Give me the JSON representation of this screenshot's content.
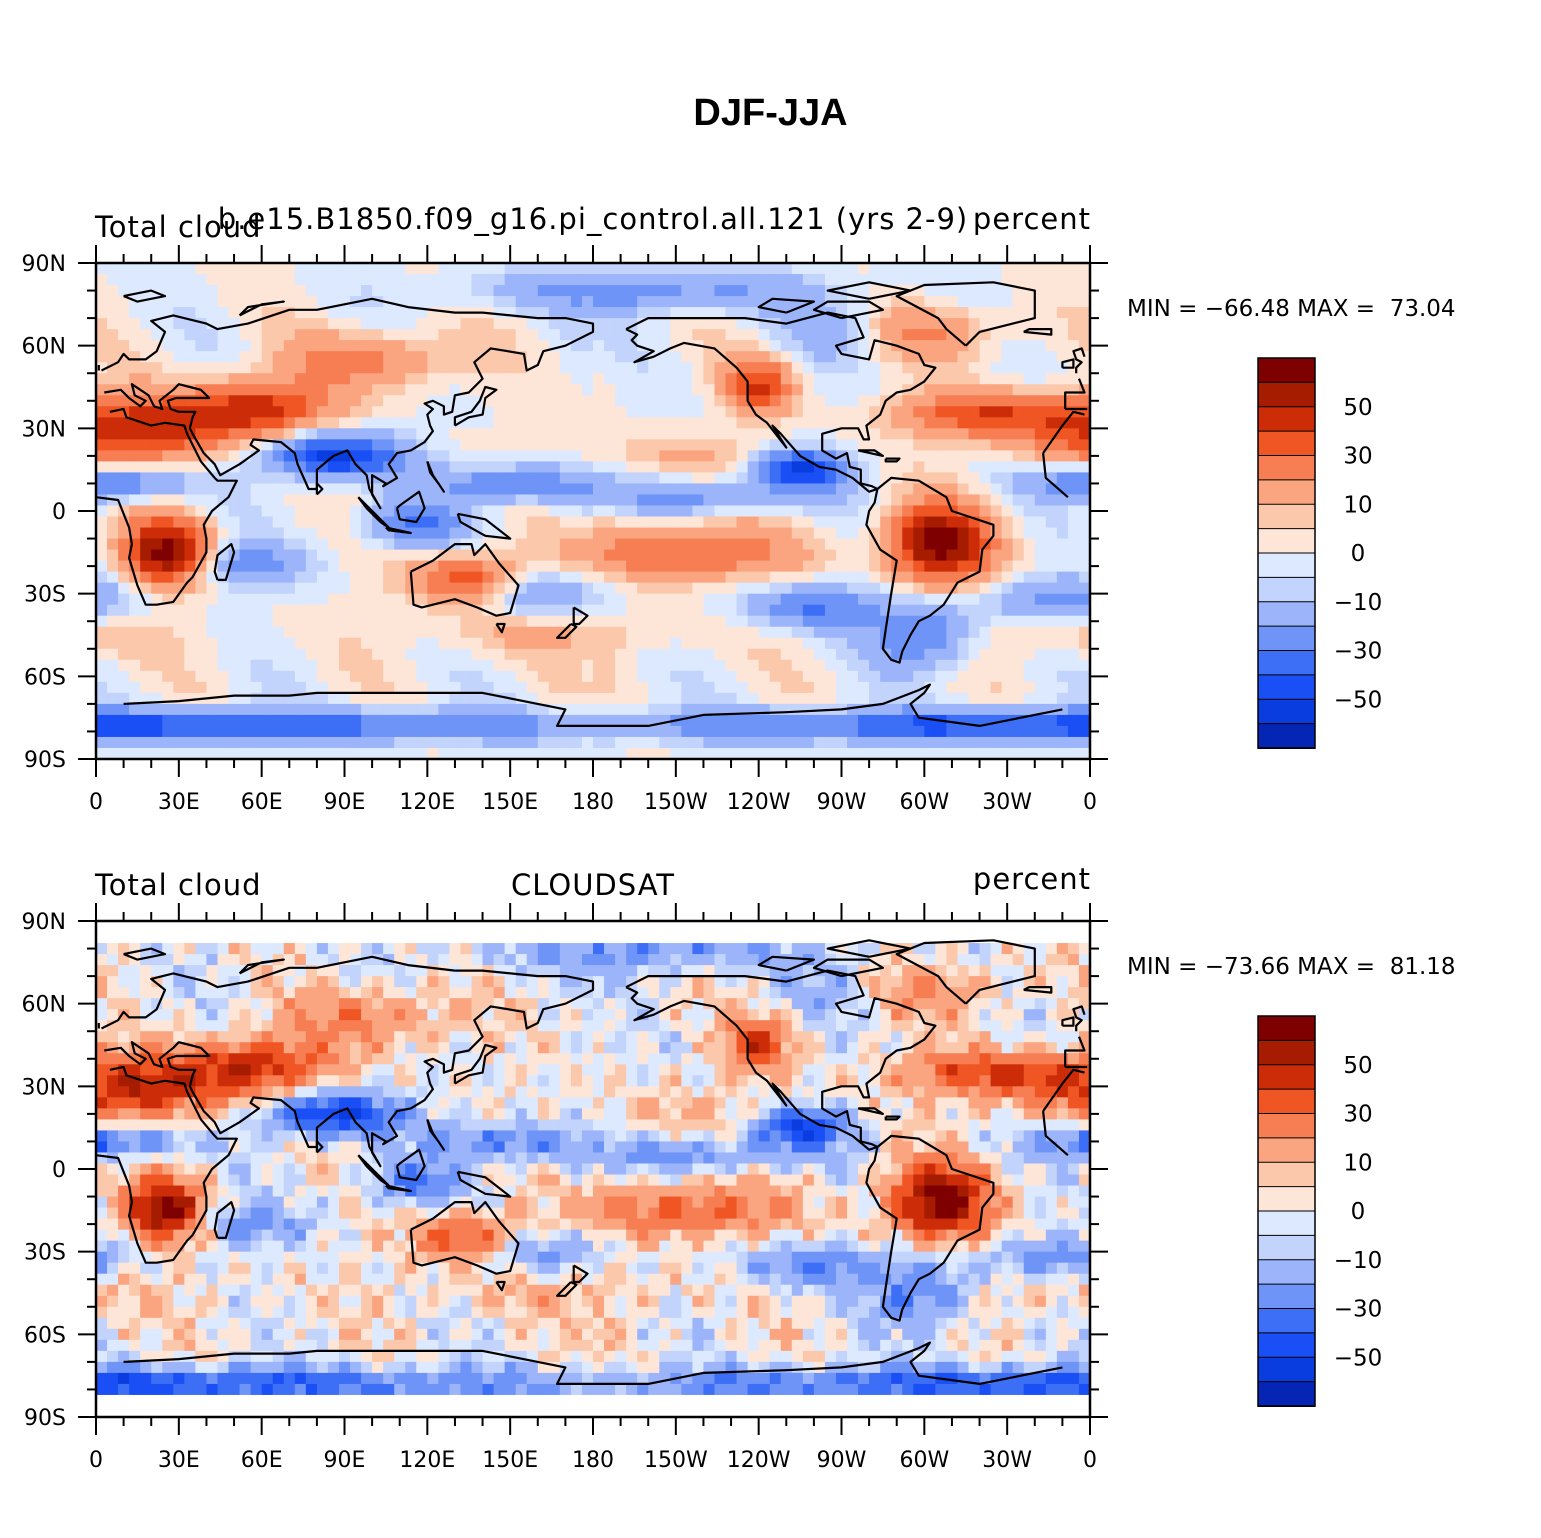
{
  "title": "DJF-JJA",
  "colors": {
    "levels": [
      "#08088a",
      "#0526b4",
      "#0a3de0",
      "#1a4ff5",
      "#3d6ef6",
      "#6e94f7",
      "#9cb5fa",
      "#c2d3fc",
      "#dde9fe",
      "#fde6d8",
      "#fcc8ac",
      "#faa580",
      "#f77e53",
      "#f05524",
      "#cc2d08",
      "#a51c00",
      "#7e0000"
    ],
    "coast": "#000000"
  },
  "chart_data": [
    {
      "type": "heatmap",
      "subtitle_left": "Total cloud",
      "subtitle_center": "b.e15.B1850.f09_g16.pi_control.all.121 (yrs 2-9)",
      "subtitle_right": "percent",
      "min_label": "MIN = −66.48 MAX =  73.04",
      "min": -66.48,
      "max": 73.04,
      "x_ticks": [
        "0",
        "30E",
        "60E",
        "90E",
        "120E",
        "150E",
        "180",
        "150W",
        "120W",
        "90W",
        "60W",
        "30W",
        "0"
      ],
      "y_ticks": [
        "90N",
        "60N",
        "30N",
        "0",
        "30S",
        "60S",
        "90S"
      ],
      "colorbar_labels": [
        "50",
        "30",
        "10",
        "0",
        "−10",
        "−30",
        "−50"
      ],
      "lat_range": [
        -90,
        90
      ]
    },
    {
      "type": "heatmap",
      "subtitle_left": "Total cloud",
      "subtitle_center": "CLOUDSAT",
      "subtitle_right": "percent",
      "min_label": "MIN = −73.66 MAX =  81.18",
      "min": -73.66,
      "max": 81.18,
      "x_ticks": [
        "0",
        "30E",
        "60E",
        "90E",
        "120E",
        "150E",
        "180",
        "150W",
        "120W",
        "90W",
        "60W",
        "30W",
        "0"
      ],
      "y_ticks": [
        "90N",
        "60N",
        "30N",
        "0",
        "30S",
        "60S",
        "90S"
      ],
      "colorbar_labels": [
        "50",
        "30",
        "10",
        "0",
        "−10",
        "−30",
        "−50"
      ],
      "lat_range": [
        -82,
        82
      ]
    }
  ]
}
